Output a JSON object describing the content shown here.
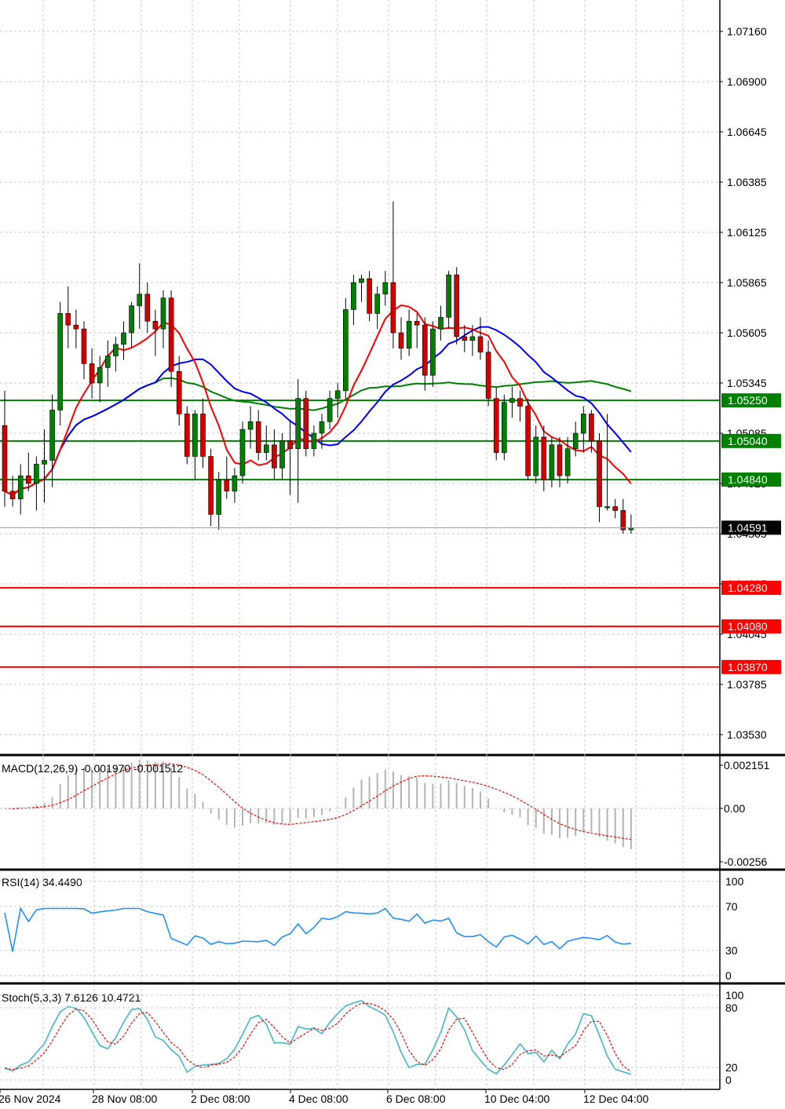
{
  "chart_data": [
    {
      "type": "candlestick",
      "panel": "price",
      "title": "",
      "ylim": [
        1.034,
        1.074
      ],
      "price_ticks": [
        "1.07160",
        "1.06900",
        "1.06645",
        "1.06385",
        "1.06125",
        "1.05865",
        "1.05605",
        "1.05345",
        "1.05085",
        "1.04825",
        "1.04565",
        "1.04305",
        "1.04045",
        "1.03785",
        "1.03530"
      ],
      "x_labels": [
        "26 Nov 2024",
        "28 Nov 08:00",
        "2 Dec 08:00",
        "4 Dec 08:00",
        "6 Dec 08:00",
        "10 Dec 04:00",
        "12 Dec 04:00"
      ],
      "current_price": {
        "label": "1.04591",
        "value": 1.04591
      },
      "resistance_levels": [
        {
          "label": "1.05250",
          "value": 1.0525,
          "color": "#008000"
        },
        {
          "label": "1.05040",
          "value": 1.0504,
          "color": "#008000"
        },
        {
          "label": "1.04840",
          "value": 1.0484,
          "color": "#008000"
        }
      ],
      "support_levels": [
        {
          "label": "1.04280",
          "value": 1.0428,
          "color": "#ff0000"
        },
        {
          "label": "1.04080",
          "value": 1.0408,
          "color": "#ff0000"
        },
        {
          "label": "1.03870",
          "value": 1.0387,
          "color": "#ff0000"
        }
      ],
      "candles": [
        [
          1.0512,
          1.053,
          1.047,
          1.0478
        ],
        [
          1.0478,
          1.0486,
          1.047,
          1.0474
        ],
        [
          1.0474,
          1.0492,
          1.0466,
          1.0486
        ],
        [
          1.0486,
          1.0498,
          1.0478,
          1.0482
        ],
        [
          1.0482,
          1.0496,
          1.0468,
          1.0492
        ],
        [
          1.0492,
          1.051,
          1.0472,
          1.0494
        ],
        [
          1.0494,
          1.0528,
          1.048,
          1.052
        ],
        [
          1.052,
          1.0576,
          1.0512,
          1.057
        ],
        [
          1.057,
          1.0584,
          1.0552,
          1.0564
        ],
        [
          1.0564,
          1.0572,
          1.0552,
          1.0562
        ],
        [
          1.0562,
          1.0566,
          1.0536,
          1.0544
        ],
        [
          1.0544,
          1.0552,
          1.0526,
          1.0534
        ],
        [
          1.0534,
          1.0548,
          1.0524,
          1.0542
        ],
        [
          1.0542,
          1.0556,
          1.0532,
          1.0548
        ],
        [
          1.0548,
          1.0558,
          1.054,
          1.0554
        ],
        [
          1.0554,
          1.0566,
          1.0546,
          1.056
        ],
        [
          1.056,
          1.0576,
          1.0552,
          1.0574
        ],
        [
          1.0574,
          1.0596,
          1.0562,
          1.058
        ],
        [
          1.058,
          1.0586,
          1.056,
          1.0566
        ],
        [
          1.0566,
          1.0572,
          1.0548,
          1.0562
        ],
        [
          1.0562,
          1.0582,
          1.0552,
          1.0578
        ],
        [
          1.0578,
          1.0582,
          1.0532,
          1.054
        ],
        [
          1.054,
          1.0548,
          1.0512,
          1.0518
        ],
        [
          1.0518,
          1.0522,
          1.0492,
          1.0496
        ],
        [
          1.0496,
          1.052,
          1.0484,
          1.0518
        ],
        [
          1.0518,
          1.0526,
          1.049,
          1.0496
        ],
        [
          1.0496,
          1.05,
          1.046,
          1.0466
        ],
        [
          1.0466,
          1.0488,
          1.0458,
          1.0484
        ],
        [
          1.0484,
          1.0496,
          1.0474,
          1.0478
        ],
        [
          1.0478,
          1.049,
          1.0472,
          1.0486
        ],
        [
          1.0486,
          1.0514,
          1.0482,
          1.051
        ],
        [
          1.051,
          1.0522,
          1.05,
          1.0514
        ],
        [
          1.0514,
          1.052,
          1.0494,
          1.0498
        ],
        [
          1.0498,
          1.0512,
          1.0494,
          1.0502
        ],
        [
          1.0502,
          1.051,
          1.0484,
          1.049
        ],
        [
          1.049,
          1.0508,
          1.0484,
          1.0504
        ],
        [
          1.0504,
          1.0514,
          1.0476,
          1.05
        ],
        [
          1.05,
          1.0536,
          1.0472,
          1.0526
        ],
        [
          1.0526,
          1.053,
          1.0496,
          1.05
        ],
        [
          1.05,
          1.0512,
          1.0496,
          1.0508
        ],
        [
          1.0508,
          1.0518,
          1.05,
          1.0514
        ],
        [
          1.0514,
          1.053,
          1.051,
          1.0526
        ],
        [
          1.0526,
          1.0534,
          1.0516,
          1.053
        ],
        [
          1.053,
          1.0578,
          1.0526,
          1.0572
        ],
        [
          1.0572,
          1.059,
          1.0564,
          1.0586
        ],
        [
          1.0586,
          1.059,
          1.0576,
          1.0588
        ],
        [
          1.0588,
          1.0592,
          1.0566,
          1.057
        ],
        [
          1.057,
          1.0584,
          1.0562,
          1.058
        ],
        [
          1.058,
          1.0592,
          1.0574,
          1.0586
        ],
        [
          1.0586,
          1.0628,
          1.0552,
          1.056
        ],
        [
          1.056,
          1.0568,
          1.0546,
          1.0552
        ],
        [
          1.0552,
          1.0572,
          1.0548,
          1.0566
        ],
        [
          1.0566,
          1.057,
          1.0552,
          1.0564
        ],
        [
          1.0564,
          1.0568,
          1.053,
          1.0538
        ],
        [
          1.0538,
          1.0566,
          1.0532,
          1.0562
        ],
        [
          1.0562,
          1.0574,
          1.0556,
          1.0568
        ],
        [
          1.0568,
          1.0592,
          1.0562,
          1.059
        ],
        [
          1.059,
          1.0594,
          1.0554,
          1.0558
        ],
        [
          1.0558,
          1.0564,
          1.055,
          1.0556
        ],
        [
          1.0556,
          1.0564,
          1.0548,
          1.0558
        ],
        [
          1.0558,
          1.0568,
          1.0546,
          1.055
        ],
        [
          1.055,
          1.0556,
          1.0522,
          1.0526
        ],
        [
          1.0526,
          1.0532,
          1.0494,
          1.0498
        ],
        [
          1.0498,
          1.0528,
          1.0494,
          1.0524
        ],
        [
          1.0524,
          1.0532,
          1.0516,
          1.0526
        ],
        [
          1.0526,
          1.053,
          1.0514,
          1.0522
        ],
        [
          1.0522,
          1.0526,
          1.0484,
          1.0486
        ],
        [
          1.0486,
          1.0512,
          1.0482,
          1.0506
        ],
        [
          1.0506,
          1.0512,
          1.0478,
          1.0484
        ],
        [
          1.0484,
          1.0506,
          1.048,
          1.0502
        ],
        [
          1.0502,
          1.0506,
          1.048,
          1.0486
        ],
        [
          1.0486,
          1.0506,
          1.0482,
          1.05
        ],
        [
          1.05,
          1.0514,
          1.0496,
          1.0508
        ],
        [
          1.0508,
          1.0522,
          1.0498,
          1.0518
        ],
        [
          1.0518,
          1.052,
          1.0498,
          1.0504
        ],
        [
          1.0504,
          1.0508,
          1.0462,
          1.047
        ],
        [
          1.047,
          1.0518,
          1.0468,
          1.047
        ],
        [
          1.047,
          1.0474,
          1.0464,
          1.0468
        ],
        [
          1.0468,
          1.0474,
          1.0456,
          1.0458
        ],
        [
          1.0458,
          1.0466,
          1.0456,
          1.0459
        ]
      ]
    },
    {
      "type": "histogram",
      "panel": "macd",
      "title": "MACD(12,26,9) -0.001970 -0.001512",
      "ylim": [
        -0.00256,
        0.00215
      ],
      "y_ticks": [
        "0.002151",
        "0.00",
        "-0.00256"
      ]
    },
    {
      "type": "line",
      "panel": "rsi",
      "title": "RSI(14) 34.4490",
      "ylim": [
        0,
        100
      ],
      "y_ticks": [
        "100",
        "70",
        "30",
        "0"
      ]
    },
    {
      "type": "line",
      "panel": "stoch",
      "title": "Stoch(5,3,3) 7.6126 10.4721",
      "ylim": [
        0,
        100
      ],
      "y_ticks": [
        "100",
        "80",
        "20",
        "0"
      ]
    }
  ],
  "colors": {
    "bull": "#008000",
    "bear": "#d40000",
    "ma_fast": "#ff0000",
    "ma_mid": "#0000ff",
    "ma_slow": "#008000",
    "macd_signal": "#ff0000",
    "rsi_line": "#1e90ff",
    "stoch_main": "#40b8c8",
    "stoch_signal": "#ff0000"
  }
}
